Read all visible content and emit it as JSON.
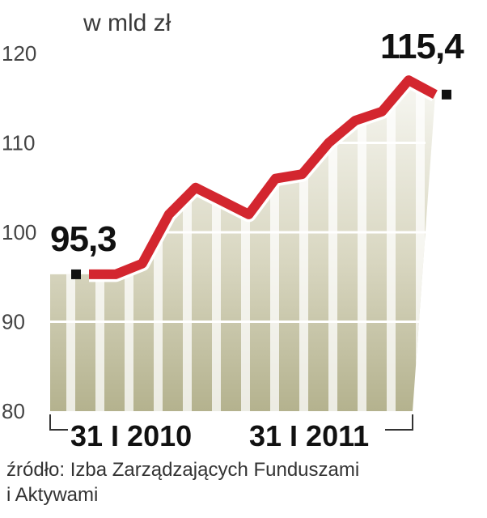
{
  "chart_data": {
    "type": "area",
    "unit_label": "w mld zł",
    "ylim": [
      80,
      120
    ],
    "yticks": [
      {
        "value": 80,
        "label": "80"
      },
      {
        "value": 90,
        "label": "90"
      },
      {
        "value": 100,
        "label": "100"
      },
      {
        "value": 110,
        "label": "110"
      },
      {
        "value": 120,
        "label": "120"
      }
    ],
    "x_labels": [
      "31 I 2010",
      "31 I 2011"
    ],
    "values": [
      95.3,
      95.3,
      96.5,
      102.0,
      105.0,
      103.5,
      102.0,
      106.0,
      106.5,
      110.0,
      112.5,
      113.5,
      117.0,
      115.4
    ],
    "label_first": "95,3",
    "label_last": "115,4",
    "grid": true,
    "colors": {
      "line": "#d3262f",
      "line_outline": "#ffffff",
      "area_dark": "#b4b28e",
      "area_light": "#f7f7f2",
      "stripe": "#ffffff",
      "grid": "#ffffff",
      "marker": "#111111"
    }
  },
  "source": {
    "line1": "źródło: Izba Zarządzających Funduszami",
    "line2": "i Aktywami"
  }
}
